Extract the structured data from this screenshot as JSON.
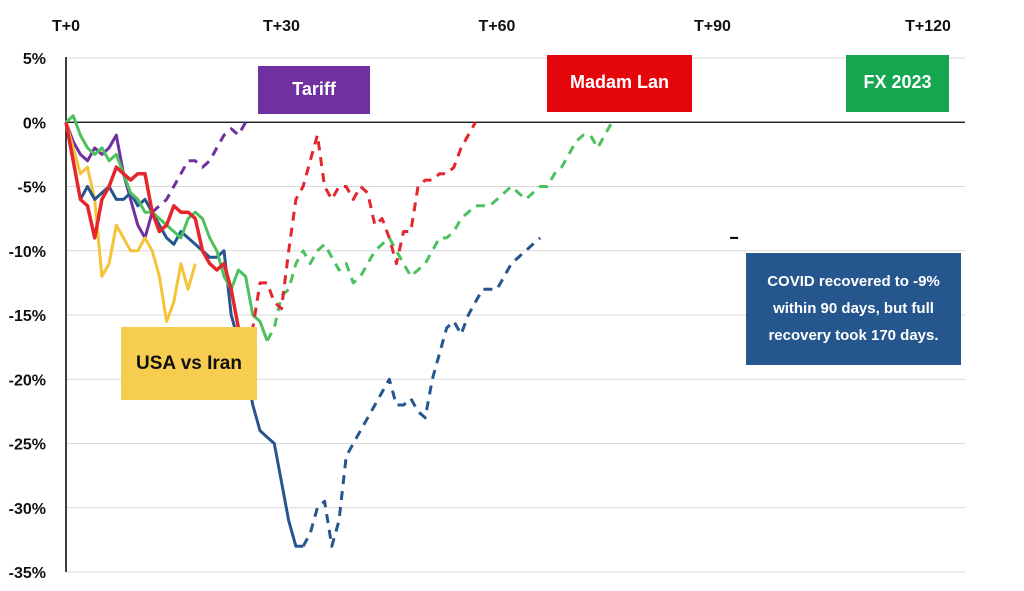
{
  "chart_data": {
    "type": "line",
    "x_unit": "trading days after event",
    "xlim": [
      0,
      120
    ],
    "ylim": [
      -35,
      5
    ],
    "x_ticks": [
      {
        "value": 0,
        "label": "T+0"
      },
      {
        "value": 30,
        "label": "T+30"
      },
      {
        "value": 60,
        "label": "T+60"
      },
      {
        "value": 90,
        "label": "T+90"
      },
      {
        "value": 120,
        "label": "T+120"
      }
    ],
    "y_ticks": [
      {
        "value": 5,
        "label": "5%"
      },
      {
        "value": 0,
        "label": "0%"
      },
      {
        "value": -5,
        "label": "-5%"
      },
      {
        "value": -10,
        "label": "-10%"
      },
      {
        "value": -15,
        "label": "-15%"
      },
      {
        "value": -20,
        "label": "-20%"
      },
      {
        "value": -25,
        "label": "-25%"
      },
      {
        "value": -30,
        "label": "-30%"
      },
      {
        "value": -35,
        "label": "-35%"
      }
    ],
    "grid": "horizontal",
    "reference_line": 0,
    "series": [
      {
        "name": "Tariff",
        "color": "#7030a0",
        "solid": [
          [
            0,
            0
          ],
          [
            1,
            -1.5
          ],
          [
            2,
            -2.5
          ],
          [
            3,
            -3
          ],
          [
            4,
            -2
          ],
          [
            5,
            -2.5
          ],
          [
            6,
            -2
          ],
          [
            7,
            -1
          ],
          [
            8,
            -4
          ],
          [
            9,
            -6
          ],
          [
            10,
            -8
          ],
          [
            11,
            -9
          ],
          [
            12,
            -7
          ]
        ],
        "dashed": [
          [
            12,
            -7
          ],
          [
            13,
            -6.5
          ],
          [
            14,
            -6
          ],
          [
            15,
            -5
          ],
          [
            16,
            -4
          ],
          [
            17,
            -3
          ],
          [
            18,
            -3
          ],
          [
            19,
            -3.5
          ],
          [
            20,
            -3
          ],
          [
            21,
            -2
          ],
          [
            22,
            -1
          ],
          [
            23,
            -0.5
          ],
          [
            24,
            -1
          ],
          [
            25,
            0
          ]
        ]
      },
      {
        "name": "USA vs Iran",
        "color": "#f5c338",
        "solid": [
          [
            0,
            0
          ],
          [
            1,
            -2
          ],
          [
            2,
            -4
          ],
          [
            3,
            -3.5
          ],
          [
            4,
            -6
          ],
          [
            5,
            -12
          ],
          [
            6,
            -11
          ],
          [
            7,
            -8
          ],
          [
            8,
            -9
          ],
          [
            9,
            -10
          ],
          [
            10,
            -10
          ],
          [
            11,
            -9
          ],
          [
            12,
            -10
          ],
          [
            13,
            -12
          ],
          [
            14,
            -15.5
          ],
          [
            15,
            -14
          ],
          [
            16,
            -11
          ],
          [
            17,
            -13
          ],
          [
            18,
            -11
          ]
        ]
      },
      {
        "name": "COVID",
        "color": "#25568e",
        "solid": [
          [
            0,
            0
          ],
          [
            1,
            -3
          ],
          [
            2,
            -6
          ],
          [
            3,
            -5
          ],
          [
            4,
            -6
          ],
          [
            5,
            -5.5
          ],
          [
            6,
            -5
          ],
          [
            7,
            -6
          ],
          [
            8,
            -6
          ],
          [
            9,
            -5.5
          ],
          [
            10,
            -6.5
          ],
          [
            11,
            -6
          ],
          [
            12,
            -7
          ],
          [
            13,
            -8
          ],
          [
            14,
            -9
          ],
          [
            15,
            -9.5
          ],
          [
            16,
            -8.5
          ],
          [
            17,
            -9
          ],
          [
            18,
            -9.5
          ],
          [
            19,
            -10
          ],
          [
            20,
            -10.5
          ],
          [
            21,
            -10.5
          ],
          [
            22,
            -10
          ],
          [
            23,
            -15
          ],
          [
            24,
            -17
          ],
          [
            25,
            -19
          ],
          [
            26,
            -22
          ],
          [
            27,
            -24
          ],
          [
            28,
            -24.5
          ],
          [
            29,
            -25
          ],
          [
            30,
            -28
          ],
          [
            31,
            -31
          ],
          [
            32,
            -33
          ],
          [
            33,
            -33
          ]
        ],
        "dashed": [
          [
            33,
            -33
          ],
          [
            34,
            -32
          ],
          [
            35,
            -30
          ],
          [
            36,
            -29.5
          ],
          [
            37,
            -33
          ],
          [
            38,
            -31
          ],
          [
            39,
            -26
          ],
          [
            40,
            -25
          ],
          [
            41,
            -24
          ],
          [
            42,
            -23
          ],
          [
            43,
            -22
          ],
          [
            44,
            -21
          ],
          [
            45,
            -20
          ],
          [
            46,
            -22
          ],
          [
            47,
            -22
          ],
          [
            48,
            -21.5
          ],
          [
            49,
            -22.5
          ],
          [
            50,
            -23
          ],
          [
            51,
            -20
          ],
          [
            52,
            -18
          ],
          [
            53,
            -16
          ],
          [
            54,
            -15.5
          ],
          [
            55,
            -16.5
          ],
          [
            56,
            -15
          ],
          [
            57,
            -14
          ],
          [
            58,
            -13
          ],
          [
            59,
            -13
          ],
          [
            60,
            -13
          ],
          [
            61,
            -12
          ],
          [
            62,
            -11
          ],
          [
            63,
            -10.5
          ],
          [
            64,
            -10
          ],
          [
            65,
            -9.5
          ],
          [
            66,
            -9
          ]
        ]
      },
      {
        "name": "FX 2023",
        "color": "#4cc25e",
        "solid": [
          [
            0,
            0
          ],
          [
            1,
            0.5
          ],
          [
            2,
            -1
          ],
          [
            3,
            -2
          ],
          [
            4,
            -2.5
          ],
          [
            5,
            -2
          ],
          [
            6,
            -3
          ],
          [
            7,
            -2.5
          ],
          [
            8,
            -4
          ],
          [
            9,
            -5.5
          ],
          [
            10,
            -6
          ],
          [
            11,
            -7
          ],
          [
            12,
            -7
          ],
          [
            13,
            -7.5
          ],
          [
            14,
            -8
          ],
          [
            15,
            -8.5
          ],
          [
            16,
            -9
          ],
          [
            17,
            -7.5
          ],
          [
            18,
            -7
          ],
          [
            19,
            -7.5
          ],
          [
            20,
            -9
          ],
          [
            21,
            -10
          ],
          [
            22,
            -12
          ],
          [
            23,
            -13
          ],
          [
            24,
            -11.5
          ],
          [
            25,
            -12
          ],
          [
            26,
            -15
          ],
          [
            27,
            -15.5
          ],
          [
            28,
            -17
          ]
        ],
        "dashed": [
          [
            28,
            -17
          ],
          [
            29,
            -16
          ],
          [
            30,
            -13.5
          ],
          [
            31,
            -13
          ],
          [
            32,
            -11
          ],
          [
            33,
            -10
          ],
          [
            34,
            -11
          ],
          [
            35,
            -10
          ],
          [
            36,
            -9.5
          ],
          [
            37,
            -10.5
          ],
          [
            38,
            -11.5
          ],
          [
            39,
            -11
          ],
          [
            40,
            -12.5
          ],
          [
            41,
            -12
          ],
          [
            42,
            -11
          ],
          [
            43,
            -10
          ],
          [
            44,
            -9.5
          ],
          [
            45,
            -9
          ],
          [
            46,
            -10
          ],
          [
            47,
            -11
          ],
          [
            48,
            -12
          ],
          [
            49,
            -11.5
          ],
          [
            50,
            -11
          ],
          [
            51,
            -10
          ],
          [
            52,
            -9
          ],
          [
            53,
            -9
          ],
          [
            54,
            -8.5
          ],
          [
            55,
            -7.5
          ],
          [
            56,
            -7
          ],
          [
            57,
            -6.5
          ],
          [
            58,
            -6.5
          ],
          [
            59,
            -6.5
          ],
          [
            60,
            -6
          ],
          [
            61,
            -5.5
          ],
          [
            62,
            -5
          ],
          [
            63,
            -5.5
          ],
          [
            64,
            -6
          ],
          [
            65,
            -5.5
          ],
          [
            66,
            -5
          ],
          [
            67,
            -5
          ],
          [
            68,
            -4
          ],
          [
            69,
            -3.5
          ],
          [
            70,
            -2.5
          ],
          [
            71,
            -1.5
          ],
          [
            72,
            -1
          ],
          [
            73,
            -1
          ],
          [
            74,
            -2
          ],
          [
            75,
            -1
          ],
          [
            76,
            0
          ]
        ]
      },
      {
        "name": "Madam Lan",
        "color": "#e5262c",
        "solid": [
          [
            0,
            0
          ],
          [
            1,
            -3
          ],
          [
            2,
            -6
          ],
          [
            3,
            -6.5
          ],
          [
            4,
            -9
          ],
          [
            5,
            -6
          ],
          [
            6,
            -5
          ],
          [
            7,
            -3.5
          ],
          [
            8,
            -4
          ],
          [
            9,
            -4.5
          ],
          [
            10,
            -4
          ],
          [
            11,
            -4
          ],
          [
            12,
            -7
          ],
          [
            13,
            -8.5
          ],
          [
            14,
            -8
          ],
          [
            15,
            -6.5
          ],
          [
            16,
            -7
          ],
          [
            17,
            -7
          ],
          [
            18,
            -7.5
          ],
          [
            19,
            -10
          ],
          [
            20,
            -11
          ],
          [
            21,
            -11.5
          ],
          [
            22,
            -11
          ],
          [
            23,
            -13
          ],
          [
            24,
            -16
          ],
          [
            25,
            -17.5
          ]
        ],
        "dashed": [
          [
            25,
            -17.5
          ],
          [
            26,
            -16
          ],
          [
            27,
            -12.5
          ],
          [
            28,
            -12.5
          ],
          [
            29,
            -14
          ],
          [
            30,
            -14.5
          ],
          [
            31,
            -10
          ],
          [
            32,
            -6
          ],
          [
            33,
            -5
          ],
          [
            34,
            -3
          ],
          [
            35,
            -1
          ],
          [
            36,
            -5
          ],
          [
            37,
            -6
          ],
          [
            38,
            -5
          ],
          [
            39,
            -5
          ],
          [
            40,
            -6
          ],
          [
            41,
            -5
          ],
          [
            42,
            -5.5
          ],
          [
            43,
            -8
          ],
          [
            44,
            -7.5
          ],
          [
            45,
            -9
          ],
          [
            46,
            -11
          ],
          [
            47,
            -8.5
          ],
          [
            48,
            -8.5
          ],
          [
            49,
            -5
          ],
          [
            50,
            -4.5
          ],
          [
            51,
            -4.5
          ],
          [
            52,
            -4
          ],
          [
            53,
            -4
          ],
          [
            54,
            -3.5
          ],
          [
            55,
            -2
          ],
          [
            56,
            -1
          ],
          [
            57,
            0
          ]
        ]
      }
    ],
    "annotations": [
      {
        "text": "Tariff",
        "series": "Tariff"
      },
      {
        "text": "Madam Lan",
        "series": "Madam Lan"
      },
      {
        "text": "FX 2023",
        "series": "FX 2023"
      },
      {
        "text": "USA vs Iran",
        "series": "USA vs Iran"
      },
      {
        "lines": [
          "COVID recovered to -9%",
          "within 90 days, but full",
          "recovery took 170 days."
        ],
        "series": "COVID"
      }
    ],
    "covid_marker": {
      "x": 93,
      "y": -9
    }
  }
}
